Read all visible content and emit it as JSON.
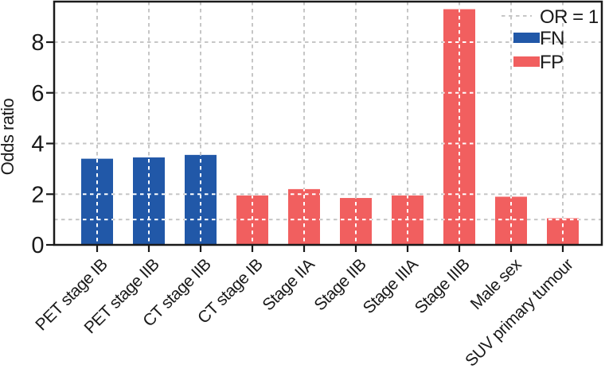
{
  "figure": {
    "background": "#ffffff"
  },
  "chart_data": {
    "type": "bar",
    "title": "",
    "xlabel": "",
    "ylabel": "Odds ratio",
    "categories": [
      "PET stage IB",
      "PET stage IIB",
      "CT stage IIB",
      "CT stage IB",
      "Stage IIA",
      "Stage IIB",
      "Stage IIIA",
      "Stage IIIB",
      "Male sex",
      "SUV primary tumour"
    ],
    "values": [
      3.4,
      3.45,
      3.55,
      1.95,
      2.2,
      1.85,
      1.95,
      9.3,
      1.9,
      1.05
    ],
    "bar_groups": [
      "FN",
      "FN",
      "FN",
      "FP",
      "FP",
      "FP",
      "FP",
      "FP",
      "FP",
      "FP"
    ],
    "series": [
      {
        "name": "FN",
        "color": "#2158a8",
        "category_indices": [
          0,
          1,
          2
        ],
        "values": [
          3.4,
          3.45,
          3.55
        ]
      },
      {
        "name": "FP",
        "color": "#f15f5f",
        "category_indices": [
          3,
          4,
          5,
          6,
          7,
          8,
          9
        ],
        "values": [
          1.95,
          2.2,
          1.85,
          1.95,
          9.3,
          1.9,
          1.05
        ]
      }
    ],
    "reference_line": {
      "label": "OR = 1",
      "value": 1,
      "style": "dashed",
      "color": "#c6c6c6"
    },
    "yticks": [
      0,
      2,
      4,
      6,
      8
    ],
    "ylim": [
      0,
      9.6
    ],
    "grid": true,
    "grid_style": "dashed",
    "grid_color": "#c6c6c6",
    "grid_color_over_bars": "#ffffff",
    "x_tick_label_rotation": 45,
    "legend": {
      "position": "top-right",
      "frame": false,
      "items": [
        {
          "label": "OR = 1",
          "marker": "dashed-line",
          "color": "#c6c6c6"
        },
        {
          "label": "FN",
          "marker": "rect",
          "color": "#2158a8"
        },
        {
          "label": "FP",
          "marker": "rect",
          "color": "#f15f5f"
        }
      ]
    }
  }
}
